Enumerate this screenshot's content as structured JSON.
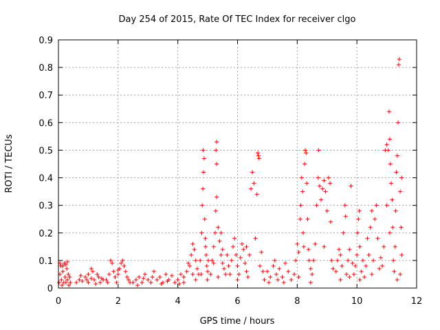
{
  "chart_data": {
    "type": "scatter",
    "title": "Day 254 of 2015, Rate Of TEC Index for receiver clgo",
    "xlabel": "GPS time / hours",
    "ylabel": "ROTI / TECUs",
    "xlim": [
      0,
      12
    ],
    "ylim": [
      0,
      0.9
    ],
    "xticks": [
      0,
      2,
      4,
      6,
      8,
      10,
      12
    ],
    "xtick_labels": [
      "0",
      "2",
      "4",
      "6",
      "8",
      "10",
      "12"
    ],
    "yticks": [
      0,
      0.1,
      0.2,
      0.3,
      0.4,
      0.5,
      0.6,
      0.7,
      0.8,
      0.9
    ],
    "ytick_labels": [
      "0",
      "0.1",
      "0.2",
      "0.3",
      "0.4",
      "0.5",
      "0.6",
      "0.7",
      "0.8",
      "0.9"
    ],
    "grid": true,
    "marker": "plus",
    "color": "#ff0000",
    "points": [
      [
        0.02,
        0.02
      ],
      [
        0.05,
        0.05
      ],
      [
        0.08,
        0.08
      ],
      [
        0.1,
        0.03
      ],
      [
        0.12,
        0.01
      ],
      [
        0.15,
        0.06
      ],
      [
        0.18,
        0.02
      ],
      [
        0.2,
        0.09
      ],
      [
        0.22,
        0.04
      ],
      [
        0.25,
        0.02
      ],
      [
        0.28,
        0.07
      ],
      [
        0.3,
        0.03
      ],
      [
        0.33,
        0.05
      ],
      [
        0.35,
        0.01
      ],
      [
        0.38,
        0.04
      ],
      [
        0.4,
        0.02
      ],
      [
        0.05,
        0.09
      ],
      [
        0.15,
        0.08
      ],
      [
        0.25,
        0.085
      ],
      [
        0.3,
        0.095
      ],
      [
        0.6,
        0.02
      ],
      [
        0.7,
        0.03
      ],
      [
        0.8,
        0.025
      ],
      [
        0.9,
        0.04
      ],
      [
        1.0,
        0.02
      ],
      [
        1.1,
        0.035
      ],
      [
        1.2,
        0.03
      ],
      [
        1.3,
        0.05
      ],
      [
        1.4,
        0.02
      ],
      [
        1.5,
        0.03
      ],
      [
        1.0,
        0.05
      ],
      [
        1.1,
        0.07
      ],
      [
        1.15,
        0.06
      ],
      [
        0.75,
        0.045
      ],
      [
        0.95,
        0.03
      ],
      [
        1.25,
        0.015
      ],
      [
        1.35,
        0.04
      ],
      [
        1.45,
        0.035
      ],
      [
        1.6,
        0.03
      ],
      [
        1.7,
        0.05
      ],
      [
        1.75,
        0.1
      ],
      [
        1.8,
        0.09
      ],
      [
        1.85,
        0.06
      ],
      [
        1.9,
        0.04
      ],
      [
        2.0,
        0.05
      ],
      [
        2.05,
        0.07
      ],
      [
        2.1,
        0.09
      ],
      [
        2.15,
        0.1
      ],
      [
        2.2,
        0.08
      ],
      [
        2.25,
        0.06
      ],
      [
        2.3,
        0.04
      ],
      [
        2.35,
        0.03
      ],
      [
        1.95,
        0.02
      ],
      [
        2.0,
        0.065
      ],
      [
        1.65,
        0.02
      ],
      [
        2.4,
        0.02
      ],
      [
        2.5,
        0.02
      ],
      [
        2.6,
        0.03
      ],
      [
        2.7,
        0.04
      ],
      [
        2.8,
        0.02
      ],
      [
        2.9,
        0.05
      ],
      [
        3.0,
        0.03
      ],
      [
        3.1,
        0.02
      ],
      [
        3.2,
        0.06
      ],
      [
        3.3,
        0.03
      ],
      [
        3.4,
        0.04
      ],
      [
        3.5,
        0.02
      ],
      [
        3.6,
        0.05
      ],
      [
        3.7,
        0.03
      ],
      [
        3.8,
        0.045
      ],
      [
        2.65,
        0.01
      ],
      [
        2.85,
        0.035
      ],
      [
        3.15,
        0.04
      ],
      [
        3.45,
        0.015
      ],
      [
        3.65,
        0.025
      ],
      [
        3.9,
        0.02
      ],
      [
        4.0,
        0.03
      ],
      [
        4.1,
        0.05
      ],
      [
        4.2,
        0.04
      ],
      [
        4.3,
        0.06
      ],
      [
        4.4,
        0.08
      ],
      [
        4.45,
        0.12
      ],
      [
        4.5,
        0.16
      ],
      [
        4.55,
        0.14
      ],
      [
        4.6,
        0.1
      ],
      [
        4.65,
        0.07
      ],
      [
        4.7,
        0.05
      ],
      [
        4.2,
        0.02
      ],
      [
        4.35,
        0.09
      ],
      [
        4.05,
        0.015
      ],
      [
        4.5,
        0.05
      ],
      [
        4.6,
        0.03
      ],
      [
        4.75,
        0.1
      ],
      [
        4.8,
        0.2
      ],
      [
        4.82,
        0.3
      ],
      [
        4.84,
        0.36
      ],
      [
        4.86,
        0.42
      ],
      [
        4.85,
        0.5
      ],
      [
        4.88,
        0.47
      ],
      [
        4.9,
        0.25
      ],
      [
        4.92,
        0.18
      ],
      [
        4.95,
        0.12
      ],
      [
        4.97,
        0.08
      ],
      [
        5.0,
        0.06
      ],
      [
        5.02,
        0.1
      ],
      [
        4.78,
        0.05
      ],
      [
        4.93,
        0.15
      ],
      [
        4.99,
        0.03
      ],
      [
        5.1,
        0.05
      ],
      [
        5.15,
        0.1
      ],
      [
        5.2,
        0.15
      ],
      [
        5.25,
        0.2
      ],
      [
        5.27,
        0.28
      ],
      [
        5.3,
        0.33
      ],
      [
        5.3,
        0.45
      ],
      [
        5.28,
        0.5
      ],
      [
        5.3,
        0.53
      ],
      [
        5.35,
        0.22
      ],
      [
        5.4,
        0.17
      ],
      [
        5.45,
        0.12
      ],
      [
        5.5,
        0.09
      ],
      [
        5.55,
        0.07
      ],
      [
        5.6,
        0.05
      ],
      [
        5.65,
        0.12
      ],
      [
        5.7,
        0.08
      ],
      [
        5.35,
        0.04
      ],
      [
        5.45,
        0.2
      ],
      [
        5.2,
        0.09
      ],
      [
        5.5,
        0.14
      ],
      [
        5.75,
        0.05
      ],
      [
        5.8,
        0.1
      ],
      [
        5.85,
        0.15
      ],
      [
        5.9,
        0.18
      ],
      [
        5.95,
        0.12
      ],
      [
        6.0,
        0.08
      ],
      [
        6.05,
        0.05
      ],
      [
        6.1,
        0.11
      ],
      [
        6.15,
        0.16
      ],
      [
        6.2,
        0.14
      ],
      [
        6.25,
        0.09
      ],
      [
        6.3,
        0.06
      ],
      [
        6.35,
        0.04
      ],
      [
        6.4,
        0.12
      ],
      [
        6.45,
        0.36
      ],
      [
        6.5,
        0.42
      ],
      [
        6.55,
        0.38
      ],
      [
        6.6,
        0.18
      ],
      [
        6.65,
        0.34
      ],
      [
        6.68,
        0.49
      ],
      [
        6.7,
        0.48
      ],
      [
        6.72,
        0.47
      ],
      [
        6.75,
        0.08
      ],
      [
        6.8,
        0.13
      ],
      [
        6.85,
        0.06
      ],
      [
        6.0,
        0.03
      ],
      [
        6.3,
        0.15
      ],
      [
        6.9,
        0.03
      ],
      [
        7.0,
        0.06
      ],
      [
        7.1,
        0.04
      ],
      [
        7.2,
        0.08
      ],
      [
        7.3,
        0.05
      ],
      [
        7.4,
        0.07
      ],
      [
        7.5,
        0.04
      ],
      [
        7.6,
        0.09
      ],
      [
        7.7,
        0.06
      ],
      [
        7.8,
        0.03
      ],
      [
        7.05,
        0.02
      ],
      [
        7.35,
        0.03
      ],
      [
        7.55,
        0.02
      ],
      [
        7.25,
        0.1
      ],
      [
        7.9,
        0.05
      ],
      [
        7.95,
        0.1
      ],
      [
        8.0,
        0.16
      ],
      [
        8.05,
        0.13
      ],
      [
        8.1,
        0.25
      ],
      [
        8.12,
        0.3
      ],
      [
        8.15,
        0.4
      ],
      [
        8.18,
        0.35
      ],
      [
        8.2,
        0.2
      ],
      [
        8.22,
        0.15
      ],
      [
        8.25,
        0.45
      ],
      [
        8.27,
        0.5
      ],
      [
        8.3,
        0.49
      ],
      [
        8.32,
        0.38
      ],
      [
        8.35,
        0.25
      ],
      [
        8.38,
        0.14
      ],
      [
        8.4,
        0.1
      ],
      [
        8.45,
        0.07
      ],
      [
        8.5,
        0.05
      ],
      [
        8.55,
        0.1
      ],
      [
        8.6,
        0.16
      ],
      [
        8.05,
        0.04
      ],
      [
        8.45,
        0.02
      ],
      [
        8.65,
        0.3
      ],
      [
        8.7,
        0.4
      ],
      [
        8.72,
        0.5
      ],
      [
        8.75,
        0.37
      ],
      [
        8.8,
        0.32
      ],
      [
        8.85,
        0.36
      ],
      [
        8.9,
        0.39
      ],
      [
        8.95,
        0.35
      ],
      [
        9.0,
        0.28
      ],
      [
        9.05,
        0.4
      ],
      [
        9.1,
        0.38
      ],
      [
        9.12,
        0.24
      ],
      [
        9.15,
        0.1
      ],
      [
        9.2,
        0.07
      ],
      [
        8.9,
        0.15
      ],
      [
        9.3,
        0.06
      ],
      [
        9.35,
        0.1
      ],
      [
        9.4,
        0.14
      ],
      [
        9.45,
        0.12
      ],
      [
        9.5,
        0.08
      ],
      [
        9.55,
        0.2
      ],
      [
        9.6,
        0.3
      ],
      [
        9.62,
        0.26
      ],
      [
        9.65,
        0.05
      ],
      [
        9.7,
        0.1
      ],
      [
        9.75,
        0.14
      ],
      [
        9.8,
        0.37
      ],
      [
        9.85,
        0.09
      ],
      [
        9.9,
        0.05
      ],
      [
        9.45,
        0.03
      ],
      [
        9.75,
        0.04
      ],
      [
        9.95,
        0.08
      ],
      [
        10.0,
        0.12
      ],
      [
        10.02,
        0.2
      ],
      [
        10.05,
        0.25
      ],
      [
        10.08,
        0.28
      ],
      [
        10.1,
        0.15
      ],
      [
        10.15,
        0.06
      ],
      [
        10.2,
        0.1
      ],
      [
        10.25,
        0.04
      ],
      [
        10.3,
        0.08
      ],
      [
        10.35,
        0.18
      ],
      [
        10.4,
        0.12
      ],
      [
        10.45,
        0.22
      ],
      [
        10.5,
        0.28
      ],
      [
        10.55,
        0.1
      ],
      [
        10.6,
        0.25
      ],
      [
        10.65,
        0.3
      ],
      [
        10.7,
        0.18
      ],
      [
        10.75,
        0.07
      ],
      [
        10.8,
        0.11
      ],
      [
        10.1,
        0.03
      ],
      [
        10.5,
        0.05
      ],
      [
        10.85,
        0.08
      ],
      [
        10.9,
        0.15
      ],
      [
        10.95,
        0.5
      ],
      [
        11.0,
        0.52
      ],
      [
        11.05,
        0.5
      ],
      [
        11.08,
        0.64
      ],
      [
        11.1,
        0.54
      ],
      [
        11.12,
        0.45
      ],
      [
        11.15,
        0.38
      ],
      [
        11.18,
        0.32
      ],
      [
        11.2,
        0.22
      ],
      [
        11.22,
        0.1
      ],
      [
        11.25,
        0.06
      ],
      [
        11.28,
        0.15
      ],
      [
        11.3,
        0.28
      ],
      [
        11.32,
        0.42
      ],
      [
        11.35,
        0.48
      ],
      [
        11.38,
        0.6
      ],
      [
        11.4,
        0.81
      ],
      [
        11.42,
        0.83
      ],
      [
        11.45,
        0.35
      ],
      [
        11.48,
        0.22
      ],
      [
        11.5,
        0.12
      ],
      [
        11.45,
        0.05
      ],
      [
        11.35,
        0.03
      ],
      [
        11.0,
        0.3
      ],
      [
        11.1,
        0.2
      ],
      [
        11.5,
        0.4
      ]
    ]
  }
}
